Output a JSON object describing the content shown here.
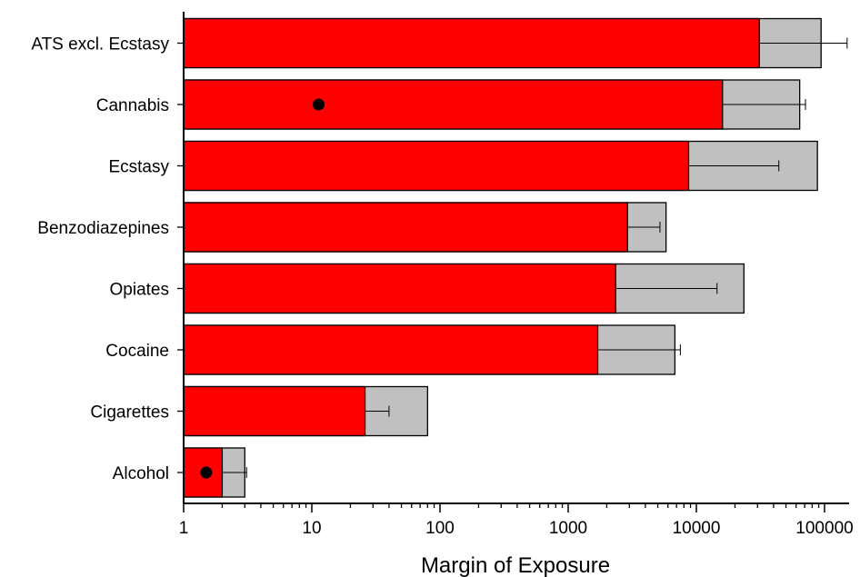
{
  "chart_data": {
    "type": "bar",
    "orientation": "horizontal",
    "x_scale": "log",
    "xlim": [
      1,
      150000
    ],
    "xlabel": "Margin of Exposure",
    "ylabel": "",
    "title": "",
    "grid": false,
    "x_ticks": [
      {
        "value": 1,
        "label": "1"
      },
      {
        "value": 10,
        "label": "10"
      },
      {
        "value": 100,
        "label": "100"
      },
      {
        "value": 1000,
        "label": "1000"
      },
      {
        "value": 10000,
        "label": "10000"
      },
      {
        "value": 100000,
        "label": "100000"
      }
    ],
    "categories": [
      "ATS excl. Ecstasy",
      "Cannabis",
      "Ecstasy",
      "Benzodiazepines",
      "Opiates",
      "Cocaine",
      "Cigarettes",
      "Alcohol"
    ],
    "series": [
      {
        "role": "lower",
        "color": "#ff0000",
        "values": [
          31000,
          16000,
          8700,
          2900,
          2350,
          1700,
          26,
          2
        ]
      },
      {
        "role": "upper",
        "color": "#c0c0c0",
        "values": [
          94000,
          64000,
          88000,
          5800,
          23500,
          6800,
          80,
          3
        ]
      }
    ],
    "error_bars": [
      {
        "category": "ATS excl. Ecstasy",
        "from": 31000,
        "to": 150000
      },
      {
        "category": "Cannabis",
        "from": 16000,
        "to": 71000
      },
      {
        "category": "Ecstasy",
        "from": 8700,
        "to": 44000
      },
      {
        "category": "Benzodiazepines",
        "from": 2900,
        "to": 5200
      },
      {
        "category": "Opiates",
        "from": 2350,
        "to": 14500
      },
      {
        "category": "Cocaine",
        "from": 1700,
        "to": 7500
      },
      {
        "category": "Cigarettes",
        "from": 26,
        "to": 40
      },
      {
        "category": "Alcohol",
        "from": 2,
        "to": 3.1
      }
    ],
    "markers": [
      {
        "category": "Cannabis",
        "value": 11.3
      },
      {
        "category": "Alcohol",
        "value": 1.5
      }
    ]
  },
  "colors": {
    "lower_bar": "#ff0000",
    "upper_bar": "#c0c0c0",
    "axis": "#000000",
    "marker": "#000000"
  }
}
